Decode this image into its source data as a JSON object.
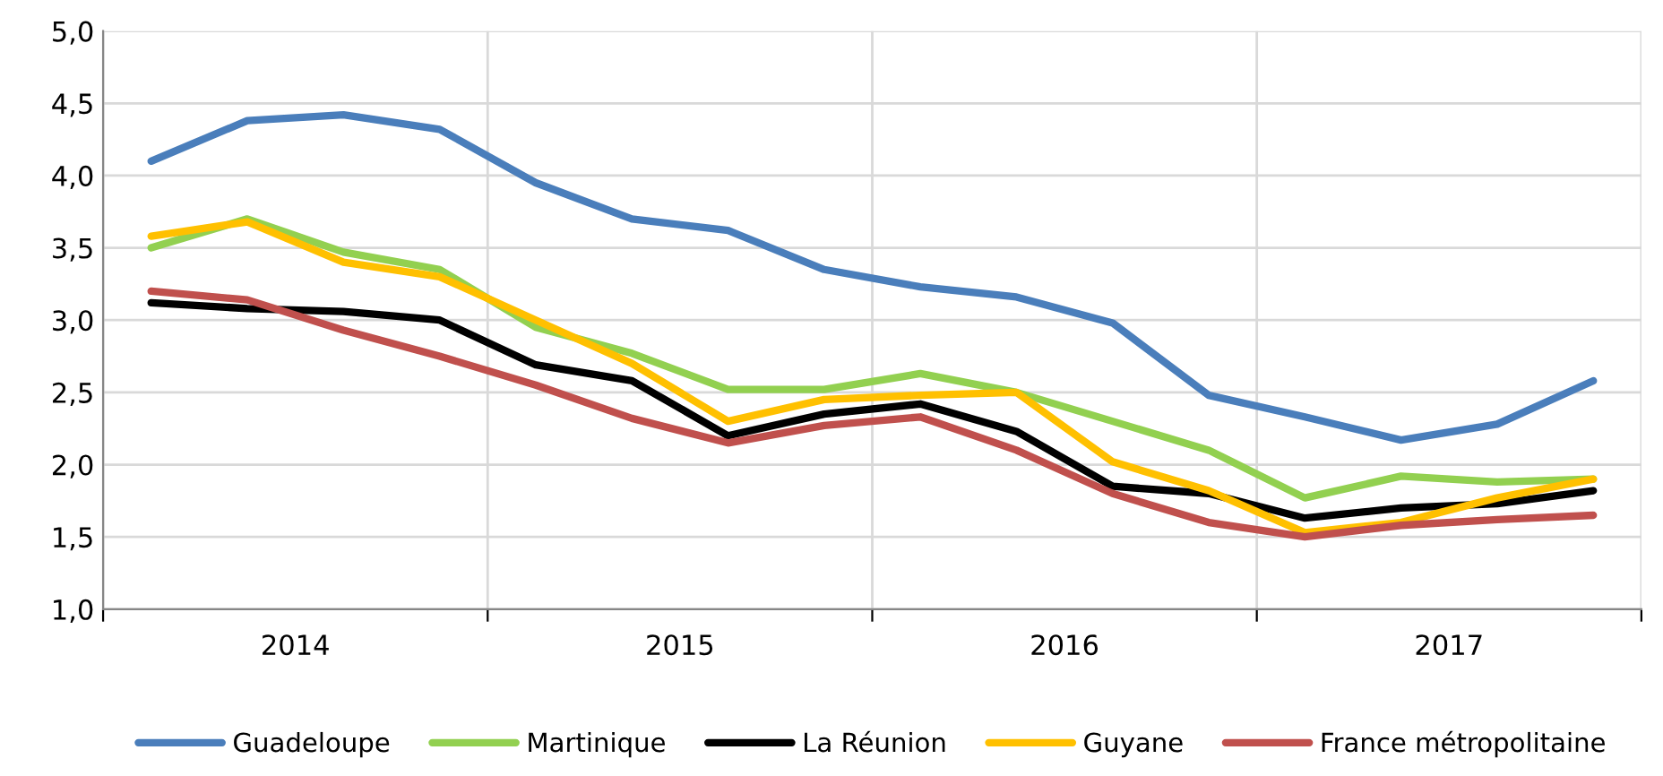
{
  "chart_data": {
    "type": "line",
    "x": [
      2014.125,
      2014.375,
      2014.625,
      2014.875,
      2015.125,
      2015.375,
      2015.625,
      2015.875,
      2016.125,
      2016.375,
      2016.625,
      2016.875,
      2017.125,
      2017.375,
      2017.625,
      2017.875
    ],
    "series": [
      {
        "name": "Guadeloupe",
        "color": "#4a7ebb",
        "values": [
          4.1,
          4.38,
          4.42,
          4.32,
          3.95,
          3.7,
          3.62,
          3.35,
          3.23,
          3.16,
          2.98,
          2.48,
          2.33,
          2.17,
          2.28,
          2.58
        ]
      },
      {
        "name": "Martinique",
        "color": "#92d050",
        "values": [
          3.5,
          3.7,
          3.47,
          3.35,
          2.95,
          2.77,
          2.52,
          2.52,
          2.63,
          2.5,
          2.3,
          2.1,
          1.77,
          1.92,
          1.88,
          1.9
        ]
      },
      {
        "name": "La Réunion",
        "color": "#000000",
        "values": [
          3.12,
          3.08,
          3.06,
          3.0,
          2.69,
          2.58,
          2.2,
          2.35,
          2.42,
          2.23,
          1.85,
          1.8,
          1.63,
          1.7,
          1.73,
          1.82
        ]
      },
      {
        "name": "Guyane",
        "color": "#ffc000",
        "values": [
          3.58,
          3.68,
          3.4,
          3.3,
          3.0,
          2.7,
          2.3,
          2.45,
          2.48,
          2.5,
          2.02,
          1.82,
          1.53,
          1.6,
          1.77,
          1.9
        ]
      },
      {
        "name": "France métropolitaine",
        "color": "#c0504d",
        "values": [
          3.2,
          3.14,
          2.93,
          2.75,
          2.55,
          2.32,
          2.15,
          2.27,
          2.33,
          2.1,
          1.8,
          1.6,
          1.5,
          1.58,
          1.62,
          1.65
        ]
      }
    ],
    "xlim": [
      2014,
      2018
    ],
    "xticks": [
      {
        "value": 2014,
        "label": null
      },
      {
        "value": 2014.5,
        "label": "2014"
      },
      {
        "value": 2015,
        "label": null
      },
      {
        "value": 2015.5,
        "label": "2015"
      },
      {
        "value": 2016,
        "label": null
      },
      {
        "value": 2016.5,
        "label": "2016"
      },
      {
        "value": 2017,
        "label": null
      },
      {
        "value": 2017.5,
        "label": "2017"
      },
      {
        "value": 2018,
        "label": null
      }
    ],
    "ylim": [
      1.0,
      5.0
    ],
    "yticks": [
      {
        "value": 1.0,
        "label": "1,0"
      },
      {
        "value": 1.5,
        "label": "1,5"
      },
      {
        "value": 2.0,
        "label": "2,0"
      },
      {
        "value": 2.5,
        "label": "2,5"
      },
      {
        "value": 3.0,
        "label": "3,0"
      },
      {
        "value": 3.5,
        "label": "3,5"
      },
      {
        "value": 4.0,
        "label": "4,0"
      },
      {
        "value": 4.5,
        "label": "4,5"
      },
      {
        "value": 5.0,
        "label": "5,0"
      }
    ],
    "grid": true,
    "legend": "bottom",
    "marker": "none",
    "line_style": "solid"
  }
}
